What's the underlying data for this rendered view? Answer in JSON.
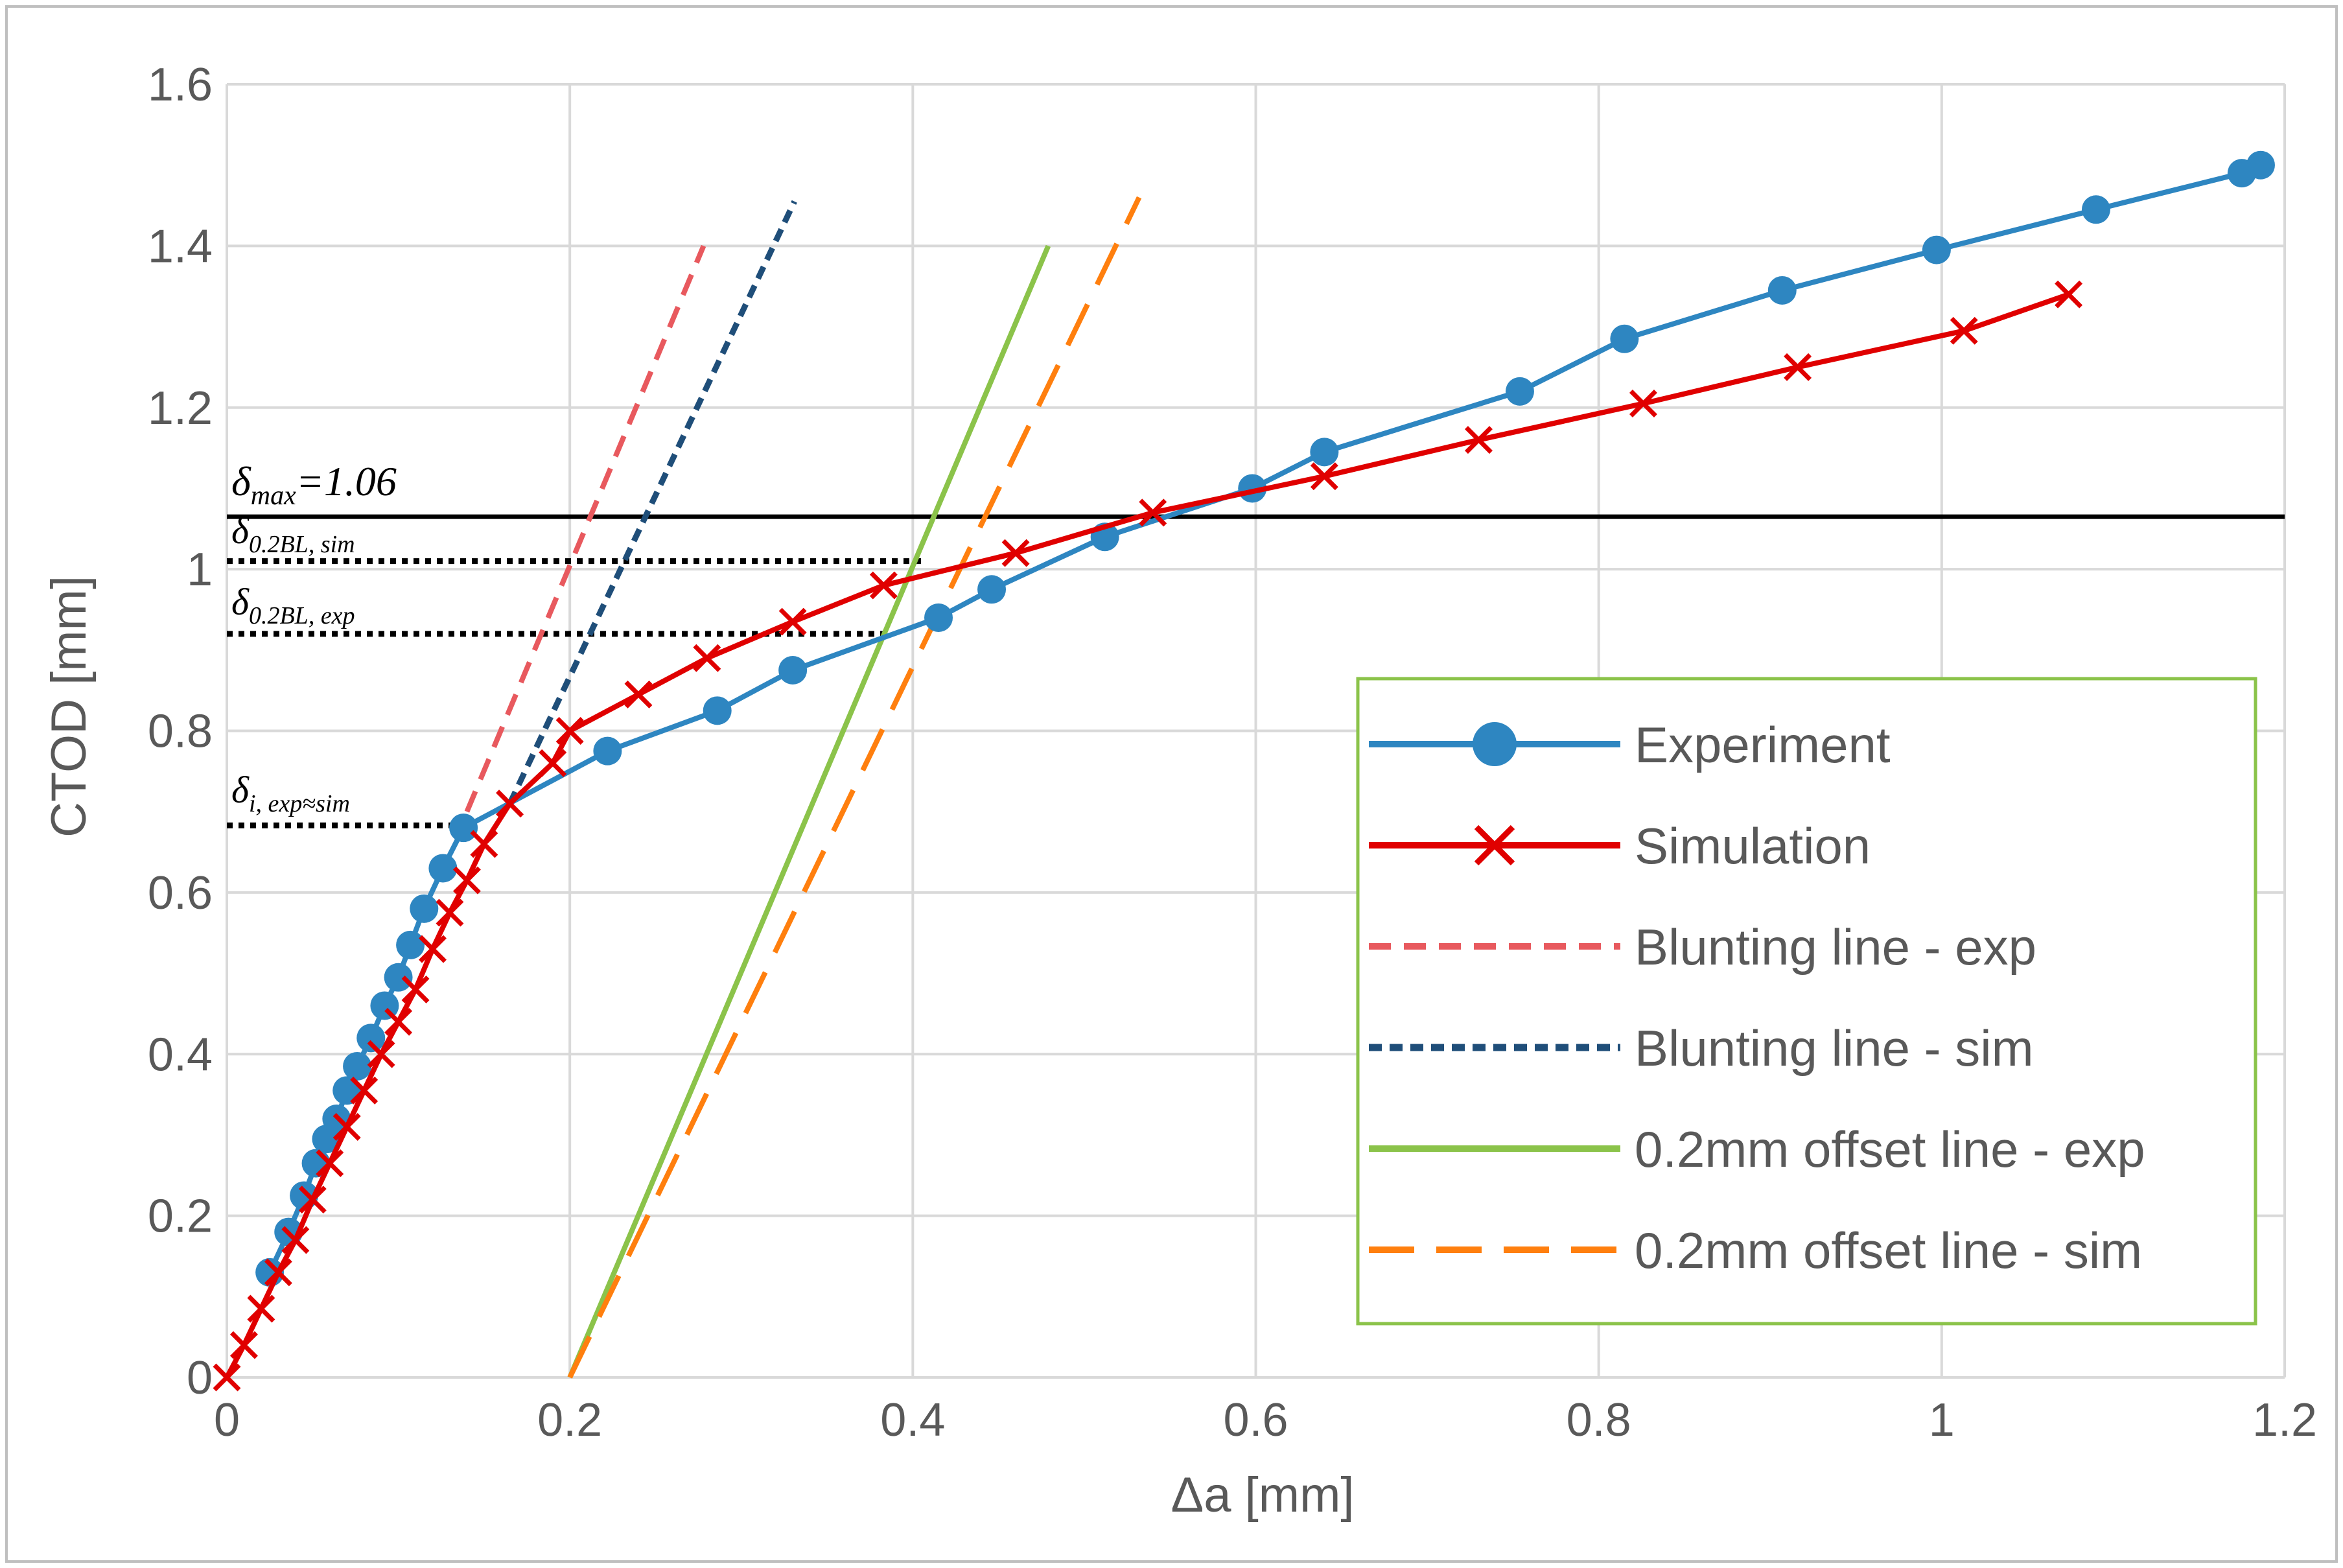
{
  "chart_data": {
    "type": "line",
    "title": "",
    "xlabel": "Δa [mm]",
    "ylabel": "CTOD [mm]",
    "xlim": [
      0,
      1.2
    ],
    "ylim": [
      0,
      1.6
    ],
    "x_ticks": [
      0,
      0.2,
      0.4,
      0.6,
      0.8,
      1,
      1.2
    ],
    "x_tick_labels": [
      "0",
      "0.2",
      "0.4",
      "0.6",
      "0.8",
      "1",
      "1.2"
    ],
    "y_ticks": [
      0,
      0.2,
      0.4,
      0.6,
      0.8,
      1,
      1.2,
      1.4,
      1.6
    ],
    "y_tick_labels": [
      "0",
      "0.2",
      "0.4",
      "0.6",
      "0.8",
      "1",
      "1.2",
      "1.4",
      "1.6"
    ],
    "grid": true,
    "legend_position": "bottom-right",
    "series": [
      {
        "name": "Experiment",
        "color": "#2E86C1",
        "style": "solid",
        "marker": "circle",
        "x": [
          0.025,
          0.036,
          0.045,
          0.052,
          0.058,
          0.064,
          0.07,
          0.076,
          0.084,
          0.092,
          0.1,
          0.107,
          0.115,
          0.126,
          0.138,
          0.222,
          0.286,
          0.33,
          0.415,
          0.446,
          0.512,
          0.598,
          0.64,
          0.754,
          0.815,
          0.907,
          0.997,
          1.09,
          1.175,
          1.186
        ],
        "y": [
          0.13,
          0.18,
          0.225,
          0.265,
          0.295,
          0.32,
          0.355,
          0.385,
          0.42,
          0.46,
          0.495,
          0.535,
          0.58,
          0.63,
          0.68,
          0.775,
          0.825,
          0.875,
          0.94,
          0.975,
          1.04,
          1.1,
          1.145,
          1.22,
          1.285,
          1.345,
          1.395,
          1.445,
          1.49,
          1.5
        ]
      },
      {
        "name": "Simulation",
        "color": "#E00000",
        "style": "solid",
        "marker": "x",
        "x": [
          0.0,
          0.01,
          0.02,
          0.03,
          0.04,
          0.05,
          0.06,
          0.07,
          0.08,
          0.09,
          0.1,
          0.11,
          0.12,
          0.13,
          0.14,
          0.15,
          0.165,
          0.19,
          0.2,
          0.24,
          0.28,
          0.33,
          0.383,
          0.46,
          0.54,
          0.64,
          0.73,
          0.826,
          0.916,
          1.013,
          1.074
        ],
        "y": [
          0.0,
          0.04,
          0.085,
          0.13,
          0.17,
          0.22,
          0.265,
          0.31,
          0.355,
          0.4,
          0.44,
          0.48,
          0.53,
          0.575,
          0.615,
          0.66,
          0.71,
          0.76,
          0.8,
          0.845,
          0.89,
          0.935,
          0.98,
          1.02,
          1.07,
          1.115,
          1.16,
          1.205,
          1.25,
          1.295,
          1.34
        ]
      },
      {
        "name": "Blunting line - exp",
        "color": "#E8595E",
        "style": "dashed",
        "marker": "none",
        "x": [
          0.14,
          0.278
        ],
        "y": [
          0.7,
          1.4
        ]
      },
      {
        "name": "Blunting line - sim",
        "color": "#1F4E79",
        "style": "dotted-dashed",
        "marker": "none",
        "x": [
          0.165,
          0.331
        ],
        "y": [
          0.71,
          1.455
        ]
      },
      {
        "name": "0.2mm offset line - exp",
        "color": "#8BC34A",
        "style": "solid",
        "marker": "none",
        "x": [
          0.2,
          0.479
        ],
        "y": [
          0.0,
          1.4
        ]
      },
      {
        "name": "0.2mm offset line - sim",
        "color": "#FF7F0E",
        "style": "long-dashed",
        "marker": "none",
        "x": [
          0.2,
          0.532
        ],
        "y": [
          0.0,
          1.46
        ]
      }
    ],
    "reference_lines": [
      {
        "name": "delta-max-line",
        "y": 1.065,
        "x_end": 1.2,
        "style": "solid",
        "color": "#000000"
      },
      {
        "name": "delta-02bl-sim-line",
        "y": 1.01,
        "x_end": 0.405,
        "style": "dotted",
        "color": "#000000"
      },
      {
        "name": "delta-02bl-exp-line",
        "y": 0.92,
        "x_end": 0.384,
        "style": "dotted",
        "color": "#000000"
      },
      {
        "name": "delta-i-line",
        "y": 0.683,
        "x_end": 0.138,
        "style": "dotted",
        "color": "#000000"
      }
    ],
    "annotations": [
      {
        "name": "delta-max-label",
        "symbol": "δ",
        "subscript": "max",
        "suffix": "=1.06"
      },
      {
        "name": "delta-02bl-sim-label",
        "symbol": "δ",
        "subscript": "0.2BL, sim",
        "suffix": ""
      },
      {
        "name": "delta-02bl-exp-label",
        "symbol": "δ",
        "subscript": "0.2BL, exp",
        "suffix": ""
      },
      {
        "name": "delta-i-label",
        "symbol": "δ",
        "subscript": "i, exp≈sim",
        "suffix": ""
      }
    ],
    "legend_border_color": "#8BC34A"
  }
}
